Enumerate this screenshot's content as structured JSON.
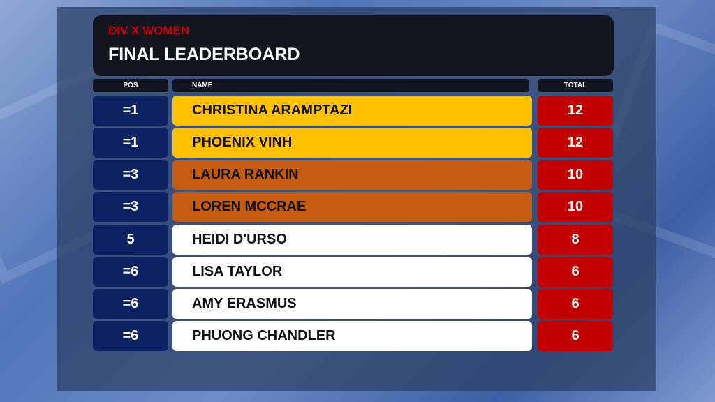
{
  "header": {
    "subtitle": "DIV X WOMEN",
    "title": "FINAL LEADERBOARD"
  },
  "columns": {
    "pos": "POS",
    "name": "NAME",
    "total": "TOTAL"
  },
  "colors": {
    "gold": "#ffc000",
    "bronze": "#c55a11",
    "white": "#ffffff",
    "pos_bg": "#0b2263",
    "total_bg": "#c30000",
    "subtitle": "#c8000a"
  },
  "rows": [
    {
      "pos": "=1",
      "name": "CHRISTINA ARAMPTAZI",
      "total": "12",
      "tier": "gold"
    },
    {
      "pos": "=1",
      "name": "PHOENIX VINH",
      "total": "12",
      "tier": "gold"
    },
    {
      "pos": "=3",
      "name": "LAURA RANKIN",
      "total": "10",
      "tier": "bronze"
    },
    {
      "pos": "=3",
      "name": "LOREN MCCRAE",
      "total": "10",
      "tier": "bronze"
    },
    {
      "pos": "5",
      "name": "HEIDI D'URSO",
      "total": "8",
      "tier": "white"
    },
    {
      "pos": "=6",
      "name": "LISA TAYLOR",
      "total": "6",
      "tier": "white"
    },
    {
      "pos": "=6",
      "name": "AMY ERASMUS",
      "total": "6",
      "tier": "white"
    },
    {
      "pos": "=6",
      "name": "PHUONG CHANDLER",
      "total": "6",
      "tier": "white"
    }
  ]
}
